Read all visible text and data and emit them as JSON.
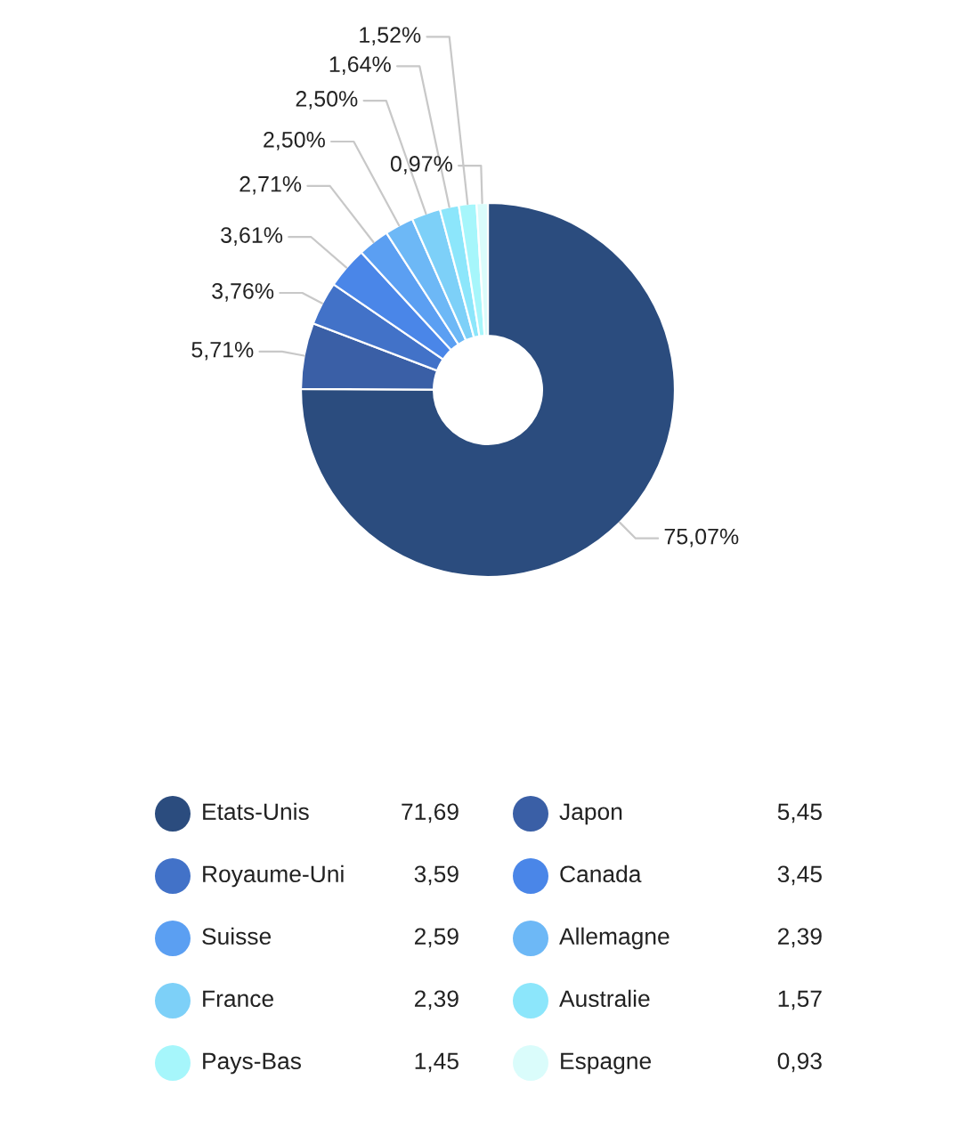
{
  "chart_data": {
    "type": "donut",
    "categories": [
      "Etats-Unis",
      "Japon",
      "Royaume-Uni",
      "Canada",
      "Suisse",
      "Allemagne",
      "France",
      "Australie",
      "Pays-Bas",
      "Espagne"
    ],
    "values": [
      75.07,
      5.71,
      3.76,
      3.61,
      2.71,
      2.5,
      2.5,
      1.64,
      1.52,
      0.97
    ],
    "value_labels": [
      "75,07%",
      "5,71%",
      "3,76%",
      "3,61%",
      "2,71%",
      "2,50%",
      "2,50%",
      "1,64%",
      "1,52%",
      "0,97%"
    ],
    "colors": [
      "#2b4c7e",
      "#3a5fa6",
      "#4272c8",
      "#4a86e8",
      "#5b9ff2",
      "#6db8f6",
      "#7dd0f8",
      "#8ce6fb",
      "#a6f6fb",
      "#dafcfb"
    ],
    "annotations": [
      "71,69",
      "5,45",
      "3,59",
      "3,45",
      "2,59",
      "2,39",
      "2,39",
      "1,57",
      "1,45",
      "0,93"
    ],
    "legend": "bottom"
  }
}
